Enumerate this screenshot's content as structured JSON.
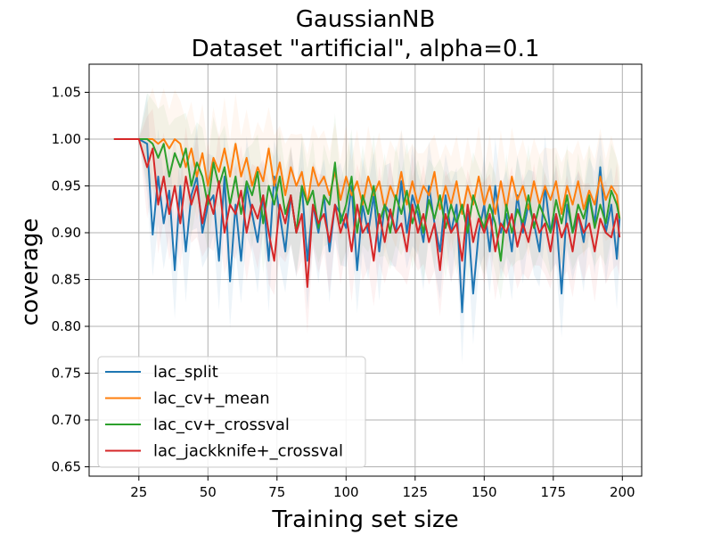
{
  "chart_data": {
    "type": "line",
    "title_line1": "GaussianNB",
    "title_line2": "Dataset \"artificial\", alpha=0.1",
    "xlabel": "Training set size",
    "ylabel": "coverage",
    "xlim": [
      7,
      207
    ],
    "ylim": [
      0.64,
      1.08
    ],
    "xticks": [
      25,
      50,
      75,
      100,
      125,
      150,
      175,
      200
    ],
    "yticks": [
      0.65,
      0.7,
      0.75,
      0.8,
      0.85,
      0.9,
      0.95,
      1.0,
      1.05
    ],
    "ytick_labels": [
      "0.65",
      "0.70",
      "0.75",
      "0.80",
      "0.85",
      "0.90",
      "0.95",
      "1.00",
      "1.05"
    ],
    "xtick_labels": [
      "25",
      "50",
      "75",
      "100",
      "125",
      "150",
      "175",
      "200"
    ],
    "grid": true,
    "legend_position": "lower-left",
    "series": [
      {
        "name": "lac_split",
        "color": "#1f77b4",
        "band_opacity": 0.08,
        "x": [
          16,
          20,
          25,
          28,
          30,
          32,
          34,
          36,
          38,
          40,
          42,
          44,
          46,
          48,
          50,
          52,
          54,
          56,
          58,
          60,
          62,
          64,
          66,
          68,
          70,
          72,
          74,
          76,
          78,
          80,
          82,
          84,
          86,
          88,
          90,
          92,
          94,
          96,
          98,
          100,
          102,
          104,
          106,
          108,
          110,
          112,
          114,
          116,
          118,
          120,
          122,
          124,
          126,
          128,
          130,
          132,
          134,
          136,
          138,
          140,
          142,
          144,
          146,
          148,
          150,
          152,
          154,
          156,
          158,
          160,
          162,
          164,
          166,
          168,
          170,
          172,
          174,
          176,
          178,
          180,
          182,
          184,
          186,
          188,
          190,
          192,
          194,
          196,
          198,
          199
        ],
        "values": [
          1.0,
          1.0,
          1.0,
          0.995,
          0.898,
          0.96,
          0.91,
          0.945,
          0.86,
          0.95,
          0.88,
          0.94,
          0.96,
          0.9,
          0.93,
          0.94,
          0.87,
          0.96,
          0.848,
          0.93,
          0.87,
          0.95,
          0.92,
          0.89,
          0.94,
          0.87,
          0.96,
          0.92,
          0.88,
          0.94,
          0.9,
          0.95,
          0.87,
          0.93,
          0.9,
          0.94,
          0.88,
          0.93,
          0.92,
          0.905,
          0.95,
          0.86,
          0.93,
          0.9,
          0.94,
          0.88,
          0.93,
          0.92,
          0.9,
          0.955,
          0.9,
          0.94,
          0.92,
          0.89,
          0.95,
          0.91,
          0.88,
          0.94,
          0.9,
          0.93,
          0.815,
          0.92,
          0.835,
          0.9,
          0.93,
          0.88,
          0.95,
          0.9,
          0.92,
          0.88,
          0.94,
          0.9,
          0.93,
          0.91,
          0.88,
          0.95,
          0.9,
          0.92,
          0.835,
          0.93,
          0.9,
          0.92,
          0.89,
          0.94,
          0.91,
          0.97,
          0.9,
          0.93,
          0.872,
          0.915
        ]
      },
      {
        "name": "lac_cv+_mean",
        "color": "#ff7f0e",
        "band_opacity": 0.06,
        "x": [
          16,
          20,
          25,
          28,
          30,
          32,
          34,
          36,
          38,
          40,
          42,
          44,
          46,
          48,
          50,
          52,
          54,
          56,
          58,
          60,
          62,
          64,
          66,
          68,
          70,
          72,
          74,
          76,
          78,
          80,
          82,
          84,
          86,
          88,
          90,
          92,
          94,
          96,
          98,
          100,
          102,
          104,
          106,
          108,
          110,
          112,
          114,
          116,
          118,
          120,
          122,
          124,
          126,
          128,
          130,
          132,
          134,
          136,
          138,
          140,
          142,
          144,
          146,
          148,
          150,
          152,
          154,
          156,
          158,
          160,
          162,
          164,
          166,
          168,
          170,
          172,
          174,
          176,
          178,
          180,
          182,
          184,
          186,
          188,
          190,
          192,
          194,
          196,
          198,
          199
        ],
        "values": [
          1.0,
          1.0,
          1.0,
          1.0,
          1.0,
          0.995,
          1.0,
          0.99,
          1.0,
          0.995,
          0.97,
          0.99,
          0.96,
          0.985,
          0.95,
          0.98,
          0.965,
          0.99,
          0.96,
          0.995,
          0.96,
          0.98,
          0.95,
          0.97,
          0.955,
          0.99,
          0.95,
          0.975,
          0.94,
          0.97,
          0.95,
          0.965,
          0.93,
          0.97,
          0.95,
          0.96,
          0.94,
          0.965,
          0.935,
          0.96,
          0.94,
          0.955,
          0.93,
          0.96,
          0.94,
          0.955,
          0.925,
          0.95,
          0.935,
          0.965,
          0.93,
          0.955,
          0.93,
          0.95,
          0.94,
          0.965,
          0.925,
          0.95,
          0.93,
          0.955,
          0.92,
          0.95,
          0.93,
          0.96,
          0.93,
          0.95,
          0.92,
          0.955,
          0.925,
          0.96,
          0.935,
          0.95,
          0.925,
          0.955,
          0.93,
          0.95,
          0.935,
          0.955,
          0.92,
          0.95,
          0.93,
          0.955,
          0.925,
          0.945,
          0.93,
          0.96,
          0.935,
          0.95,
          0.94,
          0.915
        ]
      },
      {
        "name": "lac_cv+_crossval",
        "color": "#2ca02c",
        "band_opacity": 0.06,
        "x": [
          16,
          20,
          25,
          28,
          30,
          32,
          34,
          36,
          38,
          40,
          42,
          44,
          46,
          48,
          50,
          52,
          54,
          56,
          58,
          60,
          62,
          64,
          66,
          68,
          70,
          72,
          74,
          76,
          78,
          80,
          82,
          84,
          86,
          88,
          90,
          92,
          94,
          96,
          98,
          100,
          102,
          104,
          106,
          108,
          110,
          112,
          114,
          116,
          118,
          120,
          122,
          124,
          126,
          128,
          130,
          132,
          134,
          136,
          138,
          140,
          142,
          144,
          146,
          148,
          150,
          152,
          154,
          156,
          158,
          160,
          162,
          164,
          166,
          168,
          170,
          172,
          174,
          176,
          178,
          180,
          182,
          184,
          186,
          188,
          190,
          192,
          194,
          196,
          198,
          199
        ],
        "values": [
          1.0,
          1.0,
          1.0,
          1.0,
          0.995,
          0.98,
          0.995,
          0.96,
          0.985,
          0.97,
          0.99,
          0.95,
          0.975,
          0.96,
          0.93,
          0.975,
          0.95,
          0.97,
          0.93,
          0.96,
          0.92,
          0.955,
          0.94,
          0.965,
          0.91,
          0.95,
          0.93,
          0.96,
          0.92,
          0.94,
          0.9,
          0.95,
          0.93,
          0.945,
          0.905,
          0.94,
          0.93,
          0.975,
          0.91,
          0.93,
          0.96,
          0.9,
          0.94,
          0.92,
          0.95,
          0.91,
          0.93,
          0.9,
          0.94,
          0.92,
          0.945,
          0.91,
          0.93,
          0.9,
          0.935,
          0.915,
          0.94,
          0.905,
          0.93,
          0.91,
          0.93,
          0.9,
          0.94,
          0.92,
          0.905,
          0.93,
          0.91,
          0.87,
          0.93,
          0.9,
          0.925,
          0.91,
          0.94,
          0.905,
          0.93,
          0.915,
          0.9,
          0.935,
          0.91,
          0.94,
          0.9,
          0.93,
          0.915,
          0.94,
          0.905,
          0.93,
          0.91,
          0.945,
          0.93,
          0.915
        ]
      },
      {
        "name": "lac_jackknife+_crossval",
        "color": "#d62728",
        "band_opacity": 0.06,
        "x": [
          16,
          20,
          25,
          28,
          30,
          32,
          34,
          36,
          38,
          40,
          42,
          44,
          46,
          48,
          50,
          52,
          54,
          56,
          58,
          60,
          62,
          64,
          66,
          68,
          70,
          72,
          74,
          76,
          78,
          80,
          82,
          84,
          86,
          88,
          90,
          92,
          94,
          96,
          98,
          100,
          102,
          104,
          106,
          108,
          110,
          112,
          114,
          116,
          118,
          120,
          122,
          124,
          126,
          128,
          130,
          132,
          134,
          136,
          138,
          140,
          142,
          144,
          146,
          148,
          150,
          152,
          154,
          156,
          158,
          160,
          162,
          164,
          166,
          168,
          170,
          172,
          174,
          176,
          178,
          180,
          182,
          184,
          186,
          188,
          190,
          192,
          194,
          196,
          198,
          199
        ],
        "values": [
          1.0,
          1.0,
          1.0,
          0.97,
          0.99,
          0.93,
          0.96,
          0.92,
          0.95,
          0.91,
          0.96,
          0.93,
          0.95,
          0.91,
          0.94,
          0.92,
          0.955,
          0.9,
          0.93,
          0.92,
          0.945,
          0.9,
          0.93,
          0.915,
          0.94,
          0.9,
          0.87,
          0.93,
          0.91,
          0.94,
          0.9,
          0.92,
          0.842,
          0.93,
          0.91,
          0.92,
          0.89,
          0.93,
          0.9,
          0.92,
          0.88,
          0.93,
          0.9,
          0.91,
          0.87,
          0.92,
          0.89,
          0.925,
          0.9,
          0.91,
          0.88,
          0.93,
          0.9,
          0.92,
          0.89,
          0.91,
          0.86,
          0.92,
          0.9,
          0.91,
          0.87,
          0.93,
          0.89,
          0.915,
          0.9,
          0.92,
          0.88,
          0.91,
          0.9,
          0.92,
          0.885,
          0.91,
          0.89,
          0.92,
          0.9,
          0.91,
          0.88,
          0.92,
          0.895,
          0.91,
          0.88,
          0.92,
          0.9,
          0.91,
          0.88,
          0.915,
          0.9,
          0.895,
          0.92,
          0.895
        ]
      }
    ]
  }
}
